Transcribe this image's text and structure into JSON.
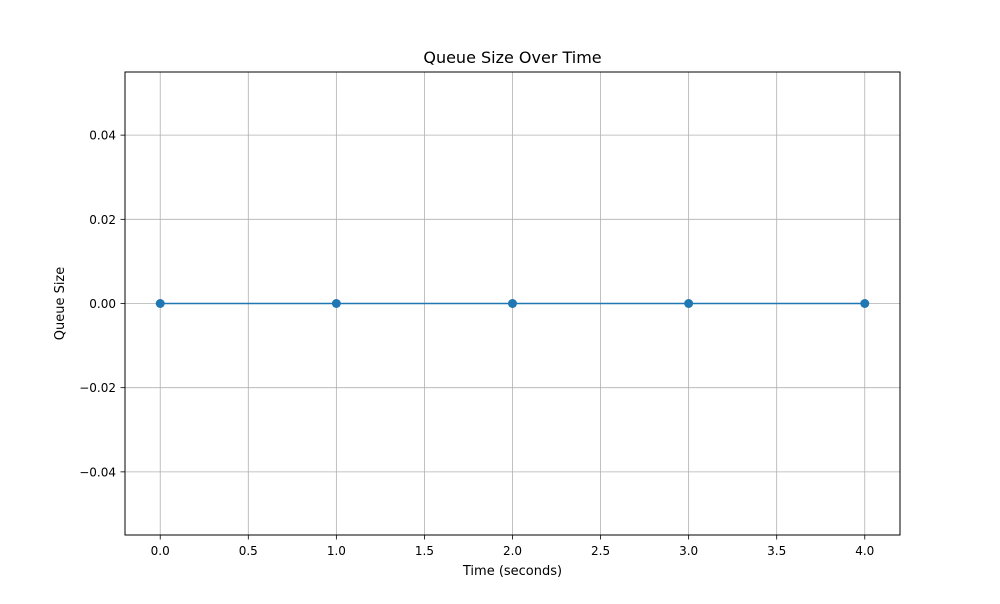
{
  "chart_data": {
    "type": "line",
    "title": "Queue Size Over Time",
    "xlabel": "Time (seconds)",
    "ylabel": "Queue Size",
    "xlim": [
      -0.2,
      4.2
    ],
    "ylim": [
      -0.055,
      0.055
    ],
    "xticks": [
      0.0,
      0.5,
      1.0,
      1.5,
      2.0,
      2.5,
      3.0,
      3.5,
      4.0
    ],
    "xtick_labels": [
      "0.0",
      "0.5",
      "1.0",
      "1.5",
      "2.0",
      "2.5",
      "3.0",
      "3.5",
      "4.0"
    ],
    "yticks": [
      -0.04,
      -0.02,
      0.0,
      0.02,
      0.04
    ],
    "ytick_labels": [
      "−0.04",
      "−0.02",
      "0.00",
      "0.02",
      "0.04"
    ],
    "grid": true,
    "series": [
      {
        "x": [
          0,
          1,
          2,
          3,
          4
        ],
        "y": [
          0,
          0,
          0,
          0,
          0
        ],
        "color": "#1f77b4",
        "marker": "circle"
      }
    ]
  }
}
